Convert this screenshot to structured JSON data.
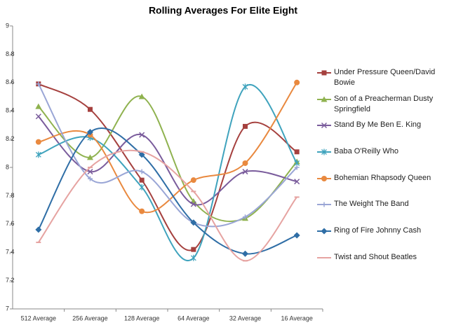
{
  "chart_data": {
    "type": "line",
    "title": "Rolling Averages For Elite Eight",
    "categories": [
      "512 Average",
      "256 Average",
      "128 Average",
      "64 Average",
      "32 Average",
      "16 Average"
    ],
    "ylim": [
      7,
      9
    ],
    "yticks": [
      7,
      7.2,
      7.4,
      7.6,
      7.8,
      8,
      8.2,
      8.4,
      8.6,
      8.8,
      9
    ],
    "smooth": true,
    "grid": false,
    "legend": "right",
    "series": [
      {
        "name": "Under Pressure Queen/David Bowie",
        "color": "#a5403e",
        "marker": "square",
        "values": [
          8.59,
          8.41,
          7.91,
          7.42,
          8.29,
          8.11
        ]
      },
      {
        "name": "Son of a Preacherman Dusty Springfield",
        "color": "#8fb24f",
        "marker": "triangle",
        "values": [
          8.43,
          8.07,
          8.5,
          7.76,
          7.64,
          8.04
        ]
      },
      {
        "name": "Stand By Me Ben E. King",
        "color": "#7a5c9c",
        "marker": "x",
        "values": [
          8.36,
          7.97,
          8.23,
          7.74,
          7.97,
          7.9
        ]
      },
      {
        "name": "Baba O'Reilly Who",
        "color": "#3fa3bd",
        "marker": "star",
        "values": [
          8.09,
          8.21,
          7.86,
          7.36,
          8.57,
          8.03
        ]
      },
      {
        "name": "Bohemian Rhapsody Queen",
        "color": "#e9893f",
        "marker": "circle",
        "values": [
          8.18,
          8.23,
          7.69,
          7.91,
          8.03,
          8.6
        ]
      },
      {
        "name": "The Weight The Band",
        "color": "#9aa6d6",
        "marker": "plus",
        "values": [
          8.59,
          7.92,
          7.97,
          7.61,
          7.65,
          8.0
        ]
      },
      {
        "name": "Ring of Fire Johnny Cash",
        "color": "#2f6ea6",
        "marker": "diamond",
        "values": [
          7.56,
          8.25,
          8.09,
          7.61,
          7.39,
          7.52
        ]
      },
      {
        "name": "Twist and Shout Beatles",
        "color": "#e6a3a1",
        "marker": "dash",
        "values": [
          7.47,
          8.0,
          8.11,
          7.83,
          7.34,
          7.79
        ]
      }
    ]
  }
}
